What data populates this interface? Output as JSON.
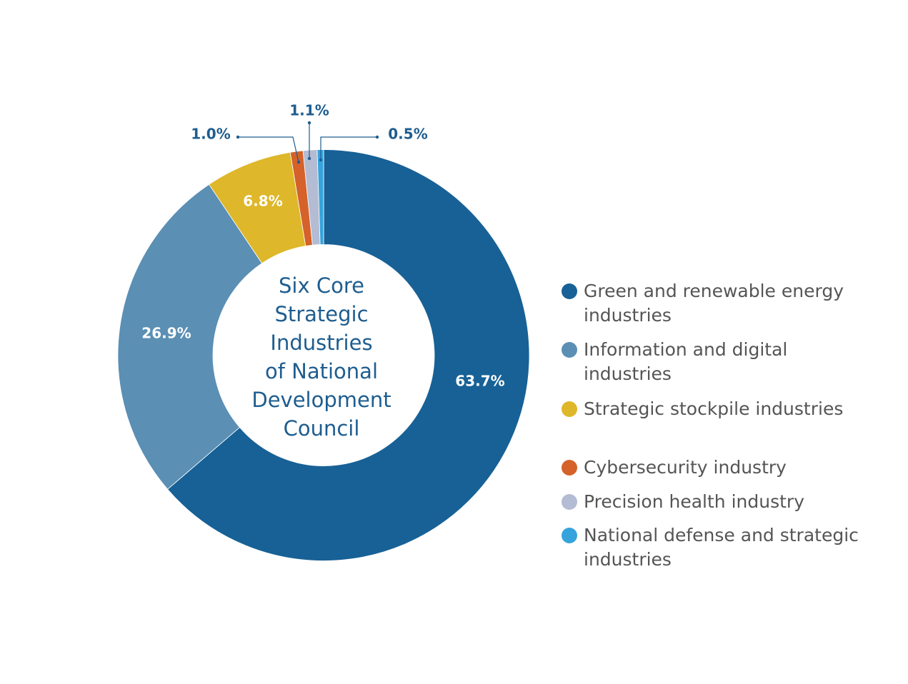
{
  "chart_data": {
    "type": "donut",
    "center_label": [
      "Six Core",
      "Strategic",
      "Industries",
      "of National",
      "Development",
      "Council"
    ],
    "categories": [
      "Green and renewable energy industries",
      "Information and digital industries",
      "Strategic stockpile industries",
      "Cybersecurity industry",
      "Precision health industry",
      "National defense and strategic industries"
    ],
    "values": [
      63.7,
      26.9,
      6.8,
      1.0,
      1.1,
      0.5
    ],
    "value_labels": [
      "63.7%",
      "26.9%",
      "6.8%",
      "1.0%",
      "1.1%",
      "0.5%"
    ],
    "colors": [
      "#176196",
      "#5b8fb4",
      "#deb72a",
      "#d4622a",
      "#b3bcd3",
      "#36a3dc"
    ],
    "legend": "right"
  }
}
